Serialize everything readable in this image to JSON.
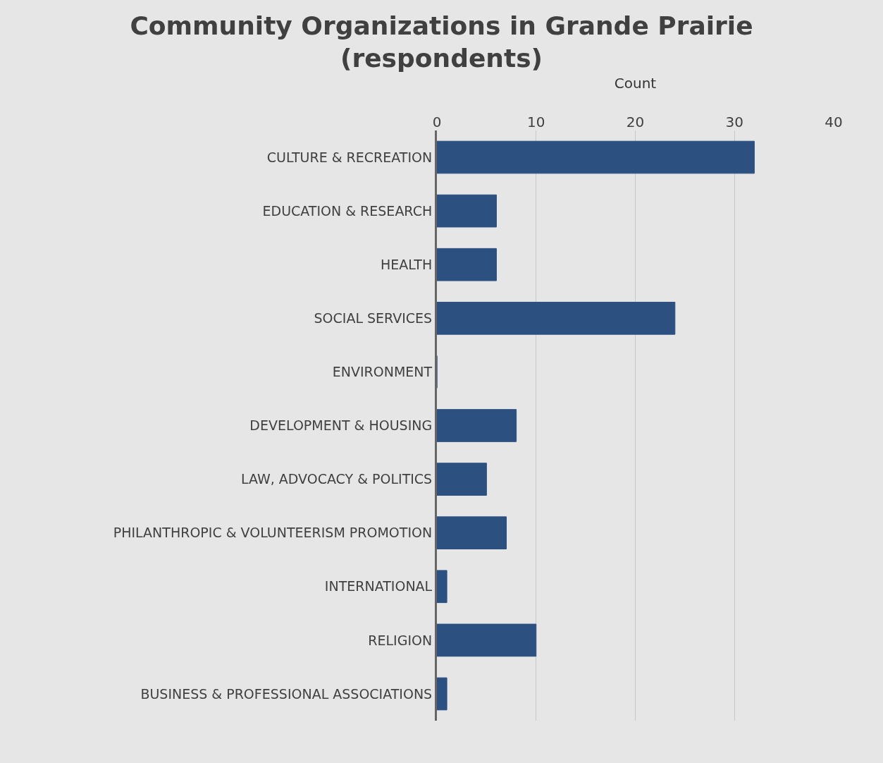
{
  "chart_data": {
    "type": "bar",
    "orientation": "horizontal",
    "title": "Community Organizations in Grande Prairie (respondents)",
    "xlabel": "Count",
    "categories": [
      "CULTURE & RECREATION",
      "EDUCATION & RESEARCH",
      "HEALTH",
      "SOCIAL SERVICES",
      "ENVIRONMENT",
      "DEVELOPMENT & HOUSING",
      "LAW, ADVOCACY & POLITICS",
      "PHILANTHROPIC & VOLUNTEERISM PROMOTION",
      "INTERNATIONAL",
      "RELIGION",
      "BUSINESS & PROFESSIONAL ASSOCIATIONS"
    ],
    "values": [
      32,
      6,
      6,
      24,
      0,
      8,
      5,
      7,
      1,
      10,
      1
    ],
    "color": "#2c5080",
    "xlim": [
      0,
      40
    ],
    "xticks": [
      0,
      10,
      20,
      30,
      40
    ],
    "grid": "x"
  }
}
